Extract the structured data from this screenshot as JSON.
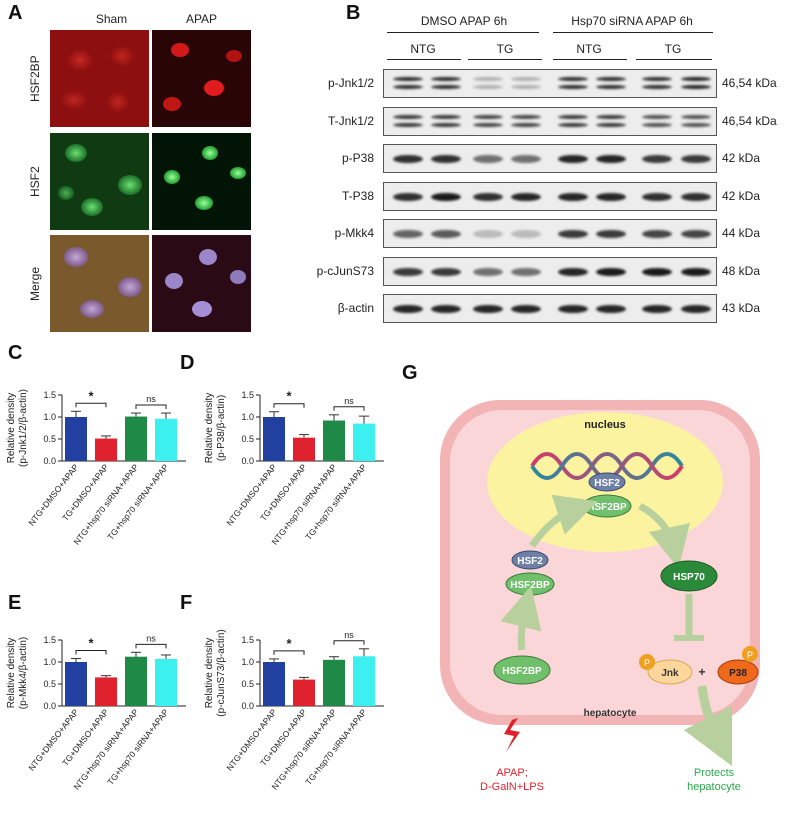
{
  "panel_letters": {
    "A": "A",
    "B": "B",
    "C": "C",
    "D": "D",
    "E": "E",
    "F": "F",
    "G": "G"
  },
  "micro": {
    "columns": [
      "Sham",
      "APAP"
    ],
    "rows": [
      "HSF2BP",
      "HSF2",
      "Merge"
    ],
    "colors": {
      "red": "#c41a1a",
      "green": "#1c9b34",
      "merge": "#8a6a3c"
    }
  },
  "blot": {
    "groups": [
      "DMSO APAP 6h",
      "Hsp70 siRNA APAP 6h"
    ],
    "subgroups": [
      "NTG",
      "TG",
      "NTG",
      "TG"
    ],
    "rows": [
      {
        "label": "p-Jnk1/2",
        "kda": "46,54 kDa",
        "intensity": [
          0.85,
          0.85,
          0.25,
          0.25,
          0.85,
          0.85,
          0.85,
          0.9
        ],
        "double": true
      },
      {
        "label": "T-Jnk1/2",
        "kda": "46,54 kDa",
        "intensity": [
          0.8,
          0.8,
          0.75,
          0.75,
          0.8,
          0.8,
          0.7,
          0.7
        ],
        "double": true
      },
      {
        "label": "p-P38",
        "kda": "42 kDa",
        "intensity": [
          0.85,
          0.85,
          0.55,
          0.55,
          0.9,
          0.9,
          0.8,
          0.8
        ],
        "double": false
      },
      {
        "label": "T-P38",
        "kda": "42 kDa",
        "intensity": [
          0.85,
          0.95,
          0.85,
          0.9,
          0.9,
          0.9,
          0.85,
          0.85
        ],
        "double": false
      },
      {
        "label": "p-Mkk4",
        "kda": "44 kDa",
        "intensity": [
          0.6,
          0.65,
          0.2,
          0.2,
          0.8,
          0.8,
          0.75,
          0.75
        ],
        "double": false
      },
      {
        "label": "p-cJunS73",
        "kda": "48 kDa",
        "intensity": [
          0.8,
          0.8,
          0.55,
          0.55,
          0.9,
          0.95,
          0.95,
          0.95
        ],
        "double": false
      },
      {
        "label": "β-actin",
        "kda": "43 kDa",
        "intensity": [
          0.9,
          0.9,
          0.9,
          0.9,
          0.9,
          0.9,
          0.9,
          0.9
        ],
        "double": false
      }
    ]
  },
  "chart_data": [
    {
      "panel": "C",
      "type": "bar",
      "categories": [
        "NTG+DMSO+APAP",
        "TG+DMSO+APAP",
        "NTG+hsp70 siRNA+APAP",
        "TG+hsp70 siRNA+APAP"
      ],
      "values": [
        1.0,
        0.51,
        1.01,
        0.96
      ],
      "errors": [
        0.13,
        0.06,
        0.08,
        0.13
      ],
      "ylabel_line1": "Relative density",
      "ylabel_line2": "(p-Jnk1/2/β-actin)",
      "ylim": [
        0,
        1.5
      ],
      "yticks": [
        "0.0",
        "0.5",
        "1.0",
        "1.5"
      ],
      "sig": [
        {
          "text": "*",
          "from": 0,
          "to": 1
        },
        {
          "text": "ns",
          "from": 2,
          "to": 3
        }
      ]
    },
    {
      "panel": "D",
      "type": "bar",
      "categories": [
        "NTG+DMSO+APAP",
        "TG+DMSO+APAP",
        "NTG+hsp70 siRNA+APAP",
        "TG+hsp70 siRNA+APAP"
      ],
      "values": [
        1.0,
        0.53,
        0.92,
        0.85
      ],
      "errors": [
        0.12,
        0.07,
        0.13,
        0.17
      ],
      "ylabel_line1": "Relative density",
      "ylabel_line2": "(p-P38/β-actin)",
      "ylim": [
        0,
        1.5
      ],
      "yticks": [
        "0.0",
        "0.5",
        "1.0",
        "1.5"
      ],
      "sig": [
        {
          "text": "*",
          "from": 0,
          "to": 1
        },
        {
          "text": "ns",
          "from": 2,
          "to": 3
        }
      ]
    },
    {
      "panel": "E",
      "type": "bar",
      "categories": [
        "NTG+DMSO+APAP",
        "TG+DMSO+APAP",
        "NTG+hsp70 siRNA+APAP",
        "TG+hsp70 siRNA+APAP"
      ],
      "values": [
        1.0,
        0.65,
        1.12,
        1.07
      ],
      "errors": [
        0.08,
        0.04,
        0.1,
        0.09
      ],
      "ylabel_line1": "Relative density",
      "ylabel_line2": "(p-Mkk4/β-actin)",
      "ylim": [
        0,
        1.5
      ],
      "yticks": [
        "0.0",
        "0.5",
        "1.0",
        "1.5"
      ],
      "sig": [
        {
          "text": "*",
          "from": 0,
          "to": 1
        },
        {
          "text": "ns",
          "from": 2,
          "to": 3
        }
      ]
    },
    {
      "panel": "F",
      "type": "bar",
      "categories": [
        "NTG+DMSO+APAP",
        "TG+DMSO+APAP",
        "NTG+hsp70 siRNA+APAP",
        "TG+hsp70 siRNA+APAP"
      ],
      "values": [
        1.0,
        0.6,
        1.05,
        1.13
      ],
      "errors": [
        0.07,
        0.05,
        0.07,
        0.17
      ],
      "ylabel_line1": "Relative density",
      "ylabel_line2": "(p-cJunS73/β-actin)",
      "ylim": [
        0,
        1.5
      ],
      "yticks": [
        "0.0",
        "0.5",
        "1.0",
        "1.5"
      ],
      "sig": [
        {
          "text": "*",
          "from": 0,
          "to": 1
        },
        {
          "text": "ns",
          "from": 2,
          "to": 3
        }
      ]
    }
  ],
  "bar_colors": [
    "#2240a0",
    "#e0222e",
    "#1f8a48",
    "#3cf0f0"
  ],
  "diagram": {
    "nucleus": "nucleus",
    "hsf2_top": "HSF2",
    "hsf2bp_top": "HSF2BP",
    "hsf2_mid": "HSF2",
    "hsf2bp_mid": "HSF2BP",
    "hsf2bp_low": "HSF2BP",
    "hsp70": "HSP70",
    "jnk": "Jnk",
    "plus": "+",
    "p38": "P38",
    "p": "P",
    "hepatocyte": "hepatocyte",
    "stimulus_line1": "APAP;",
    "stimulus_line2": "D-GalN+LPS",
    "protect_line1": "Protects",
    "protect_line2": "hepatocyte"
  }
}
